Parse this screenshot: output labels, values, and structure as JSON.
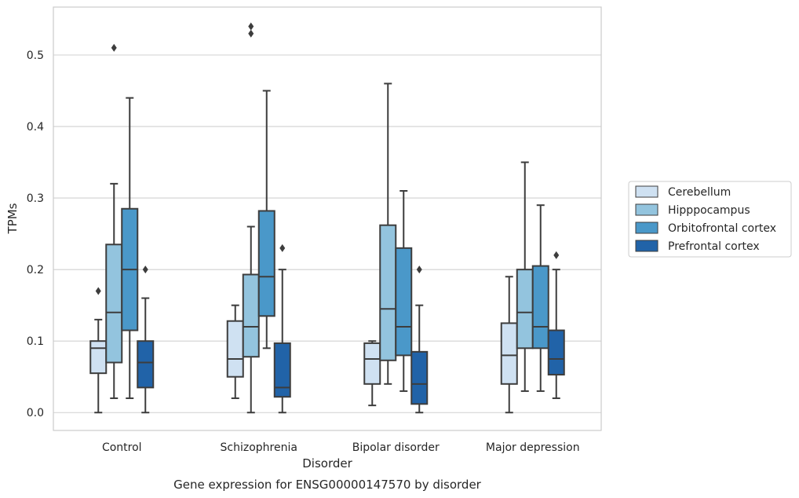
{
  "chart_data": {
    "type": "box",
    "title": "",
    "caption": "Gene expression for ENSG00000147570 by disorder",
    "xlabel": "Disorder",
    "ylabel": "TPMs",
    "ylim": [
      -0.025,
      0.567
    ],
    "yticks": [
      0.0,
      0.1,
      0.2,
      0.3,
      0.4,
      0.5
    ],
    "ytick_labels": [
      "0.0",
      "0.1",
      "0.2",
      "0.3",
      "0.4",
      "0.5"
    ],
    "grid": "horizontal",
    "legend_position": "outside-right",
    "categories": [
      "Control",
      "Schizophrenia",
      "Bipolar disorder",
      "Major depression"
    ],
    "series": [
      {
        "name": "Cerebellum",
        "color": "#cfe1f2",
        "boxes": [
          {
            "whislo": 0.0,
            "q1": 0.055,
            "med": 0.09,
            "q3": 0.1,
            "whishi": 0.13,
            "fliers": [
              0.17
            ]
          },
          {
            "whislo": 0.02,
            "q1": 0.05,
            "med": 0.075,
            "q3": 0.128,
            "whishi": 0.15,
            "fliers": []
          },
          {
            "whislo": 0.01,
            "q1": 0.04,
            "med": 0.075,
            "q3": 0.097,
            "whishi": 0.1,
            "fliers": []
          },
          {
            "whislo": 0.0,
            "q1": 0.04,
            "med": 0.08,
            "q3": 0.125,
            "whishi": 0.19,
            "fliers": []
          }
        ]
      },
      {
        "name": "Hipppocampus",
        "color": "#93c4de",
        "boxes": [
          {
            "whislo": 0.02,
            "q1": 0.07,
            "med": 0.14,
            "q3": 0.235,
            "whishi": 0.32,
            "fliers": [
              0.51
            ]
          },
          {
            "whislo": 0.0,
            "q1": 0.078,
            "med": 0.12,
            "q3": 0.193,
            "whishi": 0.26,
            "fliers": [
              0.53,
              0.54
            ]
          },
          {
            "whislo": 0.04,
            "q1": 0.073,
            "med": 0.145,
            "q3": 0.262,
            "whishi": 0.46,
            "fliers": []
          },
          {
            "whislo": 0.03,
            "q1": 0.09,
            "med": 0.14,
            "q3": 0.2,
            "whishi": 0.35,
            "fliers": []
          }
        ]
      },
      {
        "name": "Orbitofrontal cortex",
        "color": "#4a98c9",
        "boxes": [
          {
            "whislo": 0.02,
            "q1": 0.115,
            "med": 0.2,
            "q3": 0.285,
            "whishi": 0.44,
            "fliers": []
          },
          {
            "whislo": 0.09,
            "q1": 0.135,
            "med": 0.19,
            "q3": 0.282,
            "whishi": 0.45,
            "fliers": []
          },
          {
            "whislo": 0.03,
            "q1": 0.08,
            "med": 0.12,
            "q3": 0.23,
            "whishi": 0.31,
            "fliers": []
          },
          {
            "whislo": 0.03,
            "q1": 0.09,
            "med": 0.12,
            "q3": 0.205,
            "whishi": 0.29,
            "fliers": []
          }
        ]
      },
      {
        "name": "Prefrontal cortex",
        "color": "#2163a8",
        "boxes": [
          {
            "whislo": 0.0,
            "q1": 0.035,
            "med": 0.07,
            "q3": 0.1,
            "whishi": 0.16,
            "fliers": [
              0.2
            ]
          },
          {
            "whislo": 0.0,
            "q1": 0.022,
            "med": 0.035,
            "q3": 0.097,
            "whishi": 0.2,
            "fliers": [
              0.23
            ]
          },
          {
            "whislo": 0.0,
            "q1": 0.012,
            "med": 0.04,
            "q3": 0.085,
            "whishi": 0.15,
            "fliers": [
              0.2
            ]
          },
          {
            "whislo": 0.02,
            "q1": 0.053,
            "med": 0.075,
            "q3": 0.115,
            "whishi": 0.2,
            "fliers": [
              0.22
            ]
          }
        ]
      }
    ]
  }
}
